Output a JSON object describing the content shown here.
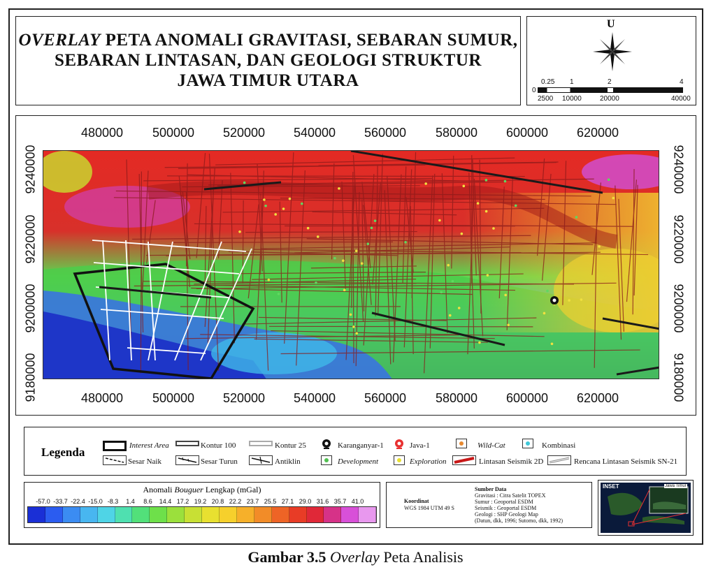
{
  "title": {
    "line1_italic": "OVERLAY",
    "line1_rest": " PETA ANOMALI GRAVITASI, SEBARAN SUMUR,",
    "line2": "SEBARAN LINTASAN, DAN GEOLOGI STRUKTUR",
    "line3": "JAWA TIMUR UTARA"
  },
  "north": {
    "label": "U"
  },
  "scalebar": {
    "top_labels": [
      "0.25",
      "1",
      "2",
      "4"
    ],
    "zero": "0",
    "bottom_labels": [
      "2500",
      "10000",
      "20000",
      "40000"
    ]
  },
  "map": {
    "x_ticks": [
      "480000",
      "500000",
      "520000",
      "540000",
      "560000",
      "580000",
      "600000",
      "620000"
    ],
    "y_ticks": [
      "9240000",
      "9220000",
      "9200000",
      "9180000"
    ]
  },
  "legend": {
    "title": "Legenda",
    "items": {
      "interest_area": "Interest Area",
      "kontur100": "Kontur 100",
      "kontur25": "Kontur 25",
      "karanganyar": "Karanganyar-1",
      "java1": "Java-1",
      "wildcat": "Wild-Cat",
      "kombinasi": "Kombinasi",
      "sesar_naik": "Sesar Naik",
      "sesar_turun": "Sesar Turun",
      "antiklin": "Antiklin",
      "development": "Development",
      "exploration": "Exploration",
      "lintasan2d": "Lintasan Seismik 2D",
      "rencana": "Rencana Lintasan Seismik SN-21"
    }
  },
  "colorbar": {
    "title_pre": "Anomali ",
    "title_italic": "Bouguer",
    "title_post": " Lengkap (mGal)",
    "labels": [
      "-57.0",
      "-33.7",
      "-22.4",
      "-15.0",
      "-8.3",
      "1.4",
      "8.6",
      "14.4",
      "17.2",
      "19.2",
      "20.8",
      "22.2",
      "23.7",
      "25.5",
      "27.1",
      "29.0",
      "31.6",
      "35.7",
      "41.0"
    ],
    "colors": [
      "#1a2fd6",
      "#2b5cf0",
      "#3b8cf2",
      "#48b6f0",
      "#4fd4e6",
      "#4fe0b0",
      "#52e07a",
      "#6ee04a",
      "#9be03c",
      "#c8e034",
      "#e8e030",
      "#f6d02c",
      "#f6b02a",
      "#f28c28",
      "#ee6426",
      "#e83c26",
      "#e02838",
      "#d63288",
      "#d850d8",
      "#e898ee"
    ]
  },
  "info": {
    "koordinat_title": "Koordinat",
    "koordinat_value": "WGS 1984 UTM 49 S",
    "sumber_title": "Sumber Data",
    "sumber_lines": [
      "Gravitasi : Citra Satelit TOPEX",
      "Sumur : Geoportal ESDM",
      "Seismik : Geoportal ESDM",
      "Geologi : SHP Geologi Map",
      "(Datun, dkk, 1996; Sutomo, dkk, 1992)"
    ]
  },
  "inset": {
    "label": "INSET",
    "sub_label": "Jawa Timur"
  },
  "caption": {
    "bold": "Gambar 3.5 ",
    "italic": "Overlay",
    "rest": " Peta Analisis"
  }
}
